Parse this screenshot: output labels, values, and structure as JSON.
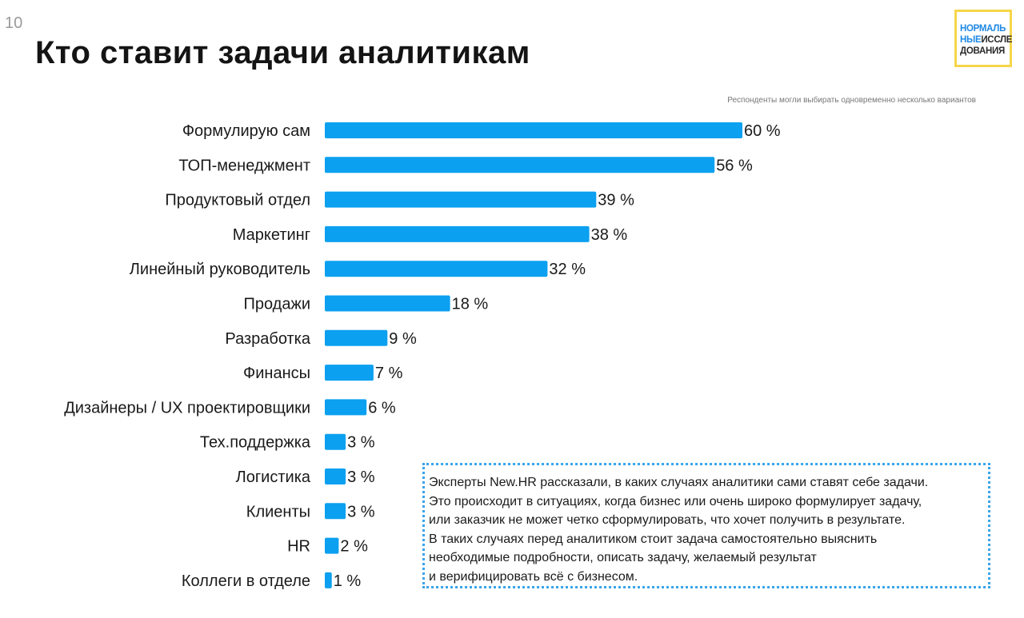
{
  "page": {
    "number": "10",
    "title": "Кто ставит задачи аналитикам",
    "note": "Респонденты могли  выбирать одновременно несколько вариантов"
  },
  "logo": {
    "line1": "НОРМАЛЬ",
    "line2_blue": "НЫЕ",
    "line2_dark": "ИССЛЕ",
    "line3": "ДОВАНИЯ"
  },
  "colors": {
    "bar": "#0ba0f0",
    "label": "#1a1a1a",
    "accent_blue": "#1e88e5",
    "logo_border": "#f6d64a"
  },
  "chart_data": {
    "type": "bar",
    "orientation": "horizontal",
    "categories": [
      "Формулирую сам",
      "ТОП-менеджмент",
      "Продуктовый отдел",
      "Маркетинг",
      "Линейный руководитель",
      "Продажи",
      "Разработка",
      "Финансы",
      "Дизайнеры / UX проектировщики",
      "Тех.поддержка",
      "Логистика",
      "Клиенты",
      "HR",
      "Коллеги в отделе"
    ],
    "values": [
      60,
      56,
      39,
      38,
      32,
      18,
      9,
      7,
      6,
      3,
      3,
      3,
      2,
      1
    ],
    "value_labels": [
      "60 %",
      "56 %",
      "39 %",
      "38 %",
      "32 %",
      "18 %",
      "9 %",
      "7 %",
      "6 %",
      "3 %",
      "3 %",
      "3 %",
      "2 %",
      "1 %"
    ],
    "unit": "%",
    "grid": false,
    "axes_visible": false
  },
  "callout": {
    "lines": [
      "Эксперты New.HR рассказали, в каких случаях аналитики сами ставят себе задачи.",
      "Это происходит в ситуациях, когда бизнес или очень широко формулирует задачу,",
      "или заказчик не может четко сформулировать, что хочет получить в результате.",
      "В таких случаях перед аналитиком стоит задача самостоятельно выяснить",
      "необходимые подробности, описать задачу, желаемый результат",
      "и верифицировать всё с бизнесом."
    ]
  }
}
